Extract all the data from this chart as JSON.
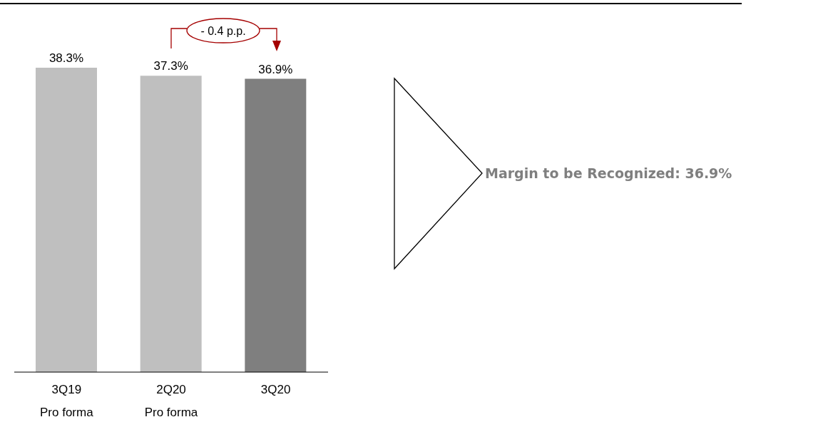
{
  "chart_data": {
    "type": "bar",
    "categories": [
      "3Q19\nPro forma",
      "2Q20\nPro forma",
      "3Q20"
    ],
    "values": [
      38.3,
      37.3,
      36.9
    ],
    "colors": [
      "#bfbfbf",
      "#bfbfbf",
      "#7f7f7f"
    ],
    "value_labels": [
      "38.3%",
      "37.3%",
      "36.9%"
    ],
    "annotations": [
      "- 0.4 p.p.",
      "Margin to be Recognized: 36.9%"
    ]
  }
}
